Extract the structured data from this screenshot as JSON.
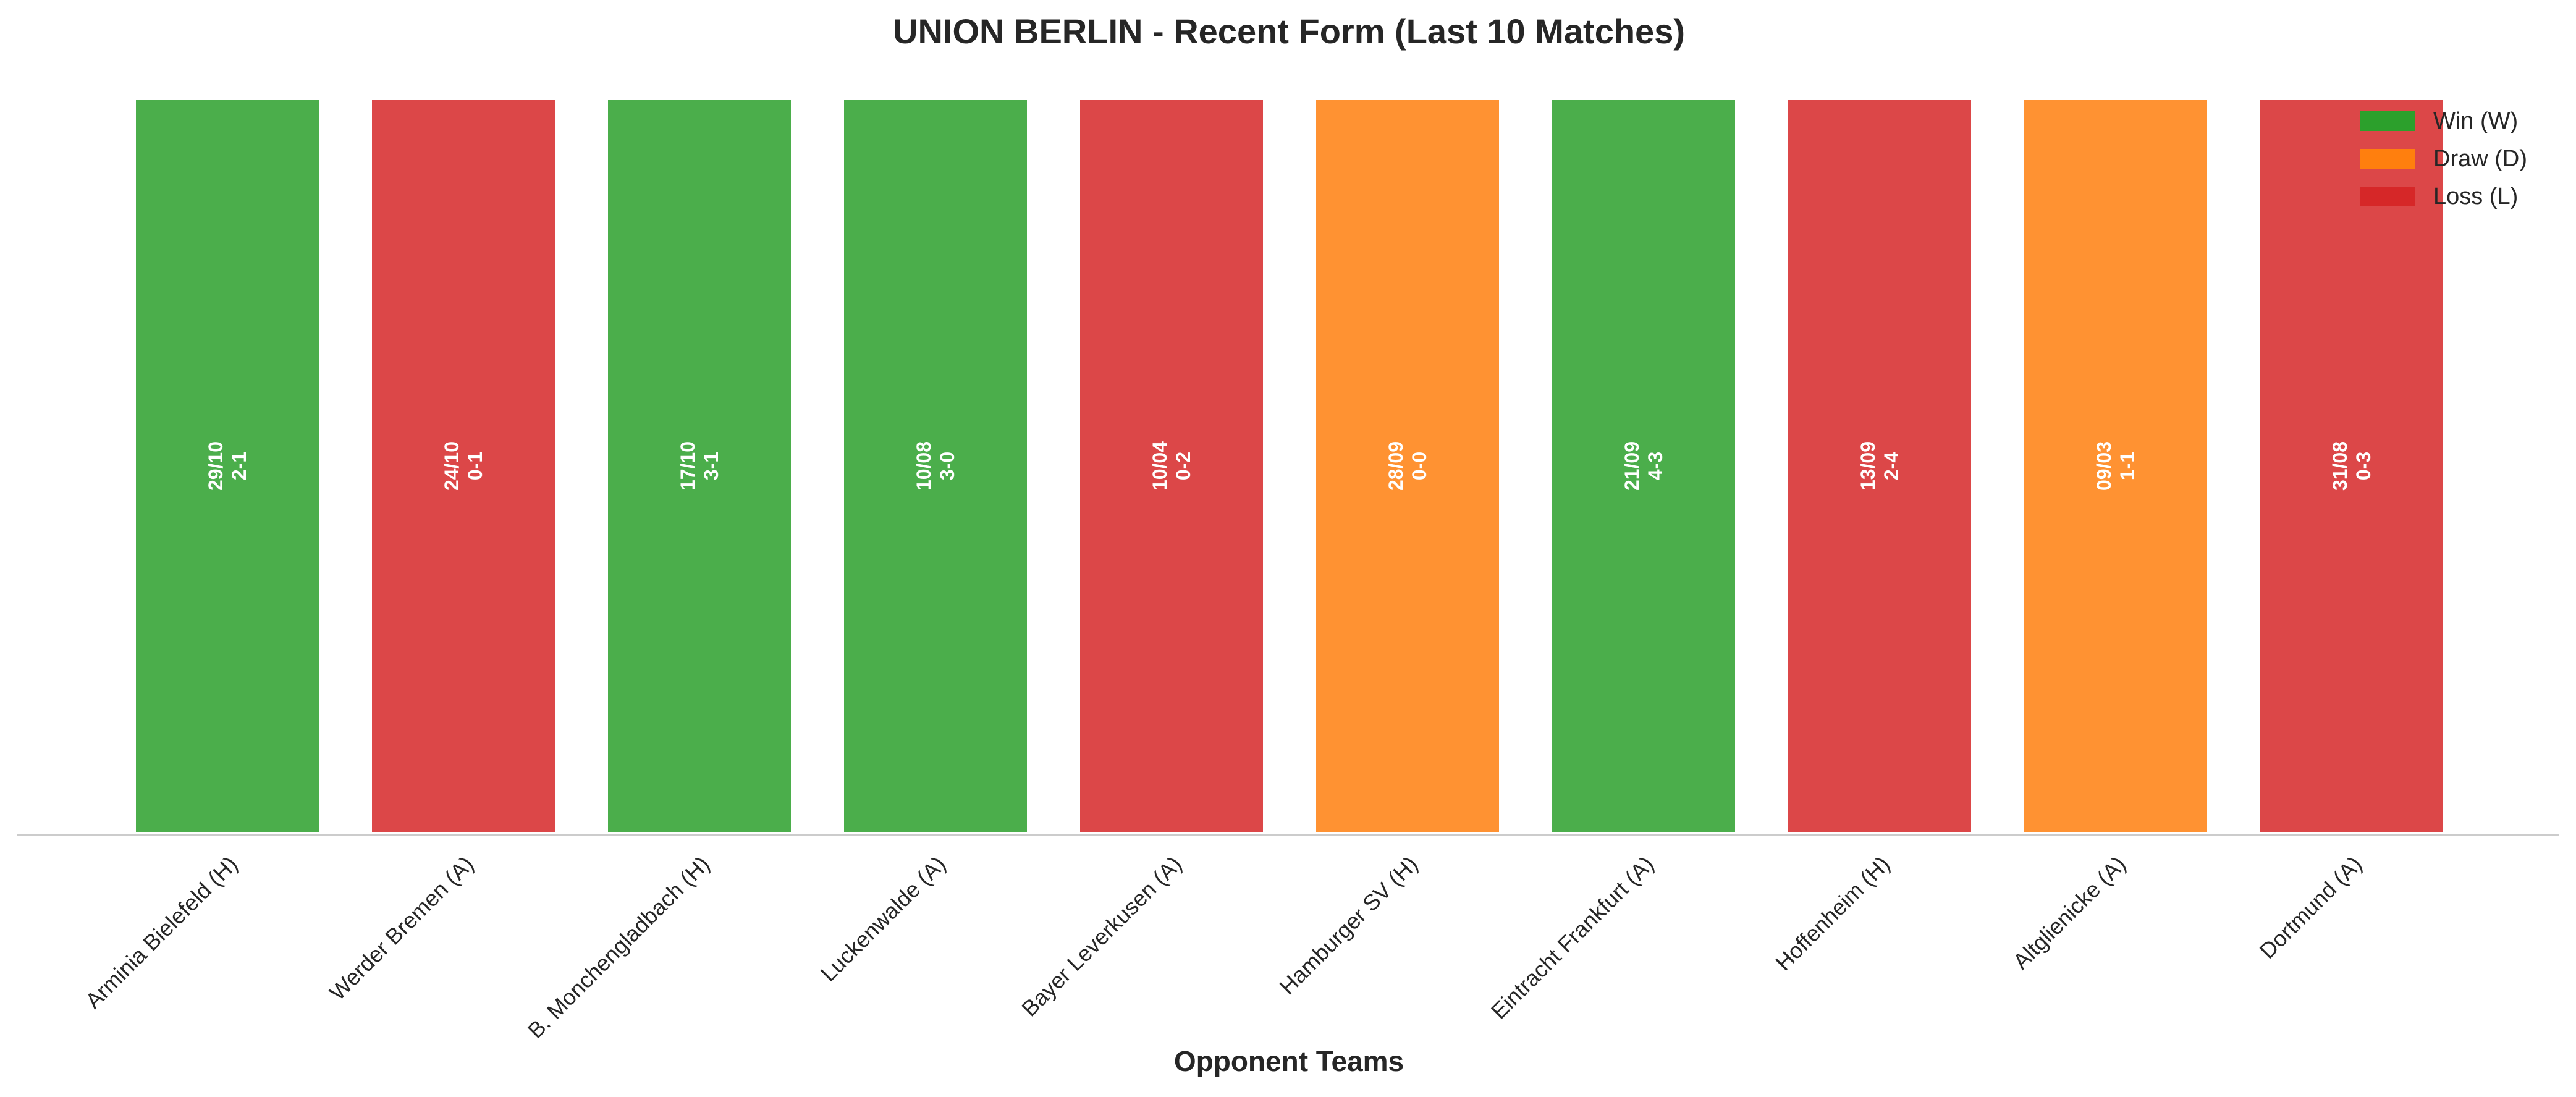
{
  "chart_data": {
    "type": "bar",
    "title": "UNION BERLIN - Recent Form (Last 10 Matches)",
    "xlabel": "Opponent Teams",
    "ylabel": "",
    "categories": [
      "Arminia Bielefeld (H)",
      "Werder Bremen (A)",
      "B. Monchengladbach (H)",
      "Luckenwalde (A)",
      "Bayer Leverkusen (A)",
      "Hamburger SV (H)",
      "Eintracht Frankfurt (A)",
      "Hoffenheim (H)",
      "Altglienicke (A)",
      "Dortmund (A)"
    ],
    "values": [
      1,
      1,
      1,
      1,
      1,
      1,
      1,
      1,
      1,
      1
    ],
    "results": [
      "W",
      "L",
      "W",
      "W",
      "L",
      "D",
      "W",
      "L",
      "D",
      "L"
    ],
    "dates": [
      "29/10",
      "24/10",
      "17/10",
      "10/08",
      "10/04",
      "28/09",
      "21/09",
      "13/09",
      "09/03",
      "31/08"
    ],
    "scores": [
      "2-1",
      "0-1",
      "3-1",
      "3-0",
      "0-2",
      "0-0",
      "4-3",
      "2-4",
      "1-1",
      "0-3"
    ],
    "ylim": [
      0,
      1
    ],
    "grid": false,
    "legend": {
      "placement": "top-right",
      "entries": [
        {
          "key": "W",
          "label": "Win (W)",
          "color": "#2ca02c"
        },
        {
          "key": "D",
          "label": "Draw (D)",
          "color": "#ff7f0e"
        },
        {
          "key": "L",
          "label": "Loss (L)",
          "color": "#d62728"
        }
      ]
    }
  }
}
